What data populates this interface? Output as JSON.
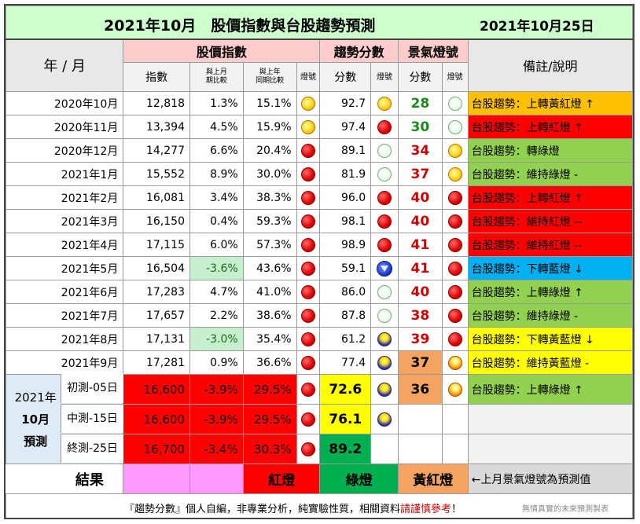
{
  "title": {
    "main": "2021年10月　股價指數與台股趨勢預測",
    "date": "2021年10月25日"
  },
  "headers": {
    "ym": "年 / 月",
    "stock_index": "股價指數",
    "trend_score": "趨勢分數",
    "boom_light": "景氣燈號",
    "note": "備註/說明",
    "index": "指數",
    "mom_1": "與上月",
    "mom_2": "期比較",
    "yoy_1": "與上年",
    "yoy_2": "同期比較",
    "light": "燈號",
    "score": "分數",
    "light2": "燈號",
    "score2": "分數",
    "light3": "燈號"
  },
  "chart_data": {
    "type": "table",
    "columns": [
      "年/月",
      "指數",
      "與上月期比較",
      "與上年同期比較",
      "燈號",
      "趨勢分數",
      "趨勢燈號",
      "景氣分數",
      "景氣燈號",
      "備註/說明"
    ],
    "rows": [
      {
        "ym": "2020年10月",
        "index": "12,818",
        "mom": "1.3%",
        "yoy": "15.1%",
        "l1": "yellow",
        "tscore": "92.7",
        "tl": "yellow",
        "bscore": "28",
        "bscore_color": "green",
        "bl": "green",
        "note": "台股趨勢：上轉黃紅燈 ↑",
        "note_bg": "#ffc000"
      },
      {
        "ym": "2020年11月",
        "index": "13,394",
        "mom": "4.5%",
        "yoy": "15.9%",
        "l1": "yellow",
        "tscore": "97.4",
        "tl": "red",
        "bscore": "30",
        "bscore_color": "green",
        "bl": "green",
        "note": "台股趨勢：上轉紅燈 ↑",
        "note_bg": "#ff0000"
      },
      {
        "ym": "2020年12月",
        "index": "14,277",
        "mom": "6.6%",
        "yoy": "20.4%",
        "l1": "red",
        "tscore": "89.1",
        "tl": "green",
        "bscore": "34",
        "bscore_color": "red",
        "bl": "yellow",
        "note": "台股趨勢：轉綠燈",
        "note_bg": "#92d050"
      },
      {
        "ym": "2021年1月",
        "index": "15,552",
        "mom": "8.9%",
        "yoy": "30.0%",
        "l1": "red",
        "tscore": "81.9",
        "tl": "green",
        "bscore": "37",
        "bscore_color": "red",
        "bl": "yellow",
        "note": "台股趨勢：維持綠燈 -",
        "note_bg": "#92d050"
      },
      {
        "ym": "2021年2月",
        "index": "16,081",
        "mom": "3.4%",
        "yoy": "38.3%",
        "l1": "red",
        "tscore": "96.0",
        "tl": "red",
        "bscore": "40",
        "bscore_color": "red",
        "bl": "red",
        "note": "台股趨勢：上轉紅燈 ↑",
        "note_bg": "#ff0000"
      },
      {
        "ym": "2021年3月",
        "index": "16,150",
        "mom": "0.4%",
        "yoy": "59.3%",
        "l1": "red",
        "tscore": "98.1",
        "tl": "red",
        "bscore": "40",
        "bscore_color": "red",
        "bl": "red",
        "note": "台股趨勢：維持紅燈 --",
        "note_bg": "#ff0000"
      },
      {
        "ym": "2021年4月",
        "index": "17,115",
        "mom": "6.0%",
        "yoy": "57.3%",
        "l1": "red",
        "tscore": "98.9",
        "tl": "red",
        "bscore": "41",
        "bscore_color": "red",
        "bl": "red",
        "note": "台股趨勢：維持紅燈 --",
        "note_bg": "#ff0000"
      },
      {
        "ym": "2021年5月",
        "index": "16,504",
        "mom": "-3.6%",
        "yoy": "43.6%",
        "l1": "red",
        "tscore": "59.1",
        "tl": "blue",
        "bscore": "41",
        "bscore_color": "red",
        "bl": "red",
        "note": "台股趨勢：下轉藍燈 ↓",
        "note_bg": "#00b0f0",
        "mom_bg": "#c6efce"
      },
      {
        "ym": "2021年6月",
        "index": "17,283",
        "mom": "4.7%",
        "yoy": "41.0%",
        "l1": "red",
        "tscore": "86.0",
        "tl": "green",
        "bscore": "40",
        "bscore_color": "red",
        "bl": "red",
        "note": "台股趨勢：上轉綠燈 ↑",
        "note_bg": "#92d050"
      },
      {
        "ym": "2021年7月",
        "index": "17,657",
        "mom": "2.2%",
        "yoy": "38.6%",
        "l1": "red",
        "tscore": "87.8",
        "tl": "green",
        "bscore": "38",
        "bscore_color": "red",
        "bl": "red",
        "note": "台股趨勢：維持綠燈 -",
        "note_bg": "#92d050"
      },
      {
        "ym": "2021年8月",
        "index": "17,131",
        "mom": "-3.0%",
        "yoy": "35.4%",
        "l1": "red",
        "tscore": "61.2",
        "tl": "yb",
        "bscore": "39",
        "bscore_color": "red",
        "bl": "red",
        "note": "台股趨勢：下轉黃藍燈 ↓",
        "note_bg": "#ffff00",
        "mom_bg": "#c6efce"
      },
      {
        "ym": "2021年9月",
        "index": "17,281",
        "mom": "0.9%",
        "yoy": "36.6%",
        "l1": "red",
        "tscore": "77.4",
        "tl": "yb",
        "bscore": "37",
        "bscore_color": "black",
        "bl": "yr",
        "bscore_bg": "#f4a460",
        "note": "台股趨勢：維持黃藍燈 -",
        "note_bg": "#ffff00"
      }
    ],
    "forecast": {
      "label_year": "2021年",
      "label_month": "10月",
      "label_pred": "預測",
      "rows": [
        {
          "stage": "初測-05日",
          "index": "16,600",
          "mom": "-3.9%",
          "yoy": "29.5%",
          "tscore": "72.6",
          "tscore_bg": "#ffff00",
          "tl": "yb",
          "bscore": "36",
          "bscore_bg": "#f4a460",
          "bl": "yr",
          "note": "台股趨勢：上轉綠燈 ↑",
          "note_bg": "#92d050"
        },
        {
          "stage": "中測-15日",
          "index": "16,600",
          "mom": "-3.9%",
          "yoy": "29.5%",
          "tscore": "76.1",
          "tscore_bg": "#ffff00",
          "tl": "yb",
          "bscore": "",
          "bl": "",
          "note": "",
          "note_bg": "#f2f2f2"
        },
        {
          "stage": "終測-25日",
          "index": "16,700",
          "mom": "-3.4%",
          "yoy": "30.3%",
          "tscore": "89.2",
          "tscore_bg": "#00b050",
          "tl": "",
          "bscore": "",
          "bl": "",
          "note": "",
          "note_bg": "#f2f2f2"
        }
      ]
    },
    "result": {
      "label": "結果",
      "light_red": "紅燈",
      "light_green": "綠燈",
      "light_yr": "黃紅燈",
      "note": "←上月景氣燈號為預測值"
    }
  },
  "footer": {
    "main_a": "『趨勢分數』個人自編，非專業分析，純實驗性質，相關資料",
    "main_b": "請謹慎參考",
    "main_c": "！",
    "credit": "無情真實的未來預測製表"
  }
}
